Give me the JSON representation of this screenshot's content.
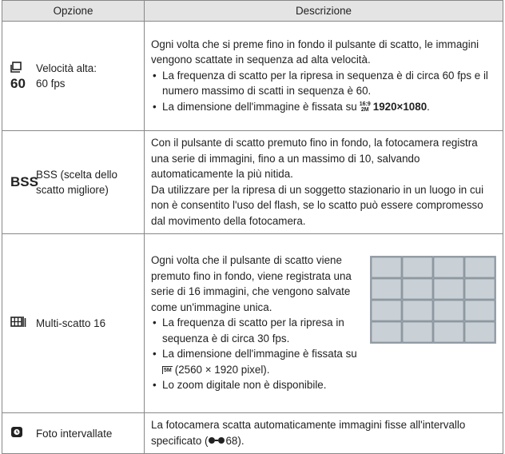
{
  "table": {
    "header": [
      "Opzione",
      "Descrizione"
    ],
    "rows": [
      {
        "icon": "60",
        "option": [
          "Velocità alta:",
          "60 fps"
        ],
        "paragraphs": [
          "Ogni volta che si preme fino in fondo il pulsante di scatto, le immagini vengono scattate in sequenza ad alta velocità."
        ],
        "bullets": [
          {
            "text": "La frequenza di scatto per la ripresa in sequenza è di circa 60 fps e il numero massimo di scatti in sequenza è 60."
          },
          {
            "text": "La dimensione dell'immagine è fissata su",
            "icon_top": "16:9",
            "icon_bottom": "2M",
            "bold": "1920×1080",
            "after": "."
          }
        ]
      },
      {
        "icon": "BSS",
        "option": [
          "BSS (scelta dello",
          "scatto migliore)"
        ],
        "paragraphs": [
          "Con il pulsante di scatto premuto fino in fondo, la fotocamera registra una serie di immagini, fino a un massimo di 10, salvando automaticamente la più nitida.",
          "Da utilizzare per la ripresa di un soggetto stazionario in un luogo in cui non è consentito l'uso del flash, se lo scatto può essere compromesso dal movimento della fotocamera."
        ]
      },
      {
        "option": [
          "Multi-scatto 16"
        ],
        "paragraphs": [
          "Ogni volta che il pulsante di scatto viene premuto fino in fondo, viene registrata una serie di 16 immagini, che vengono salvate come un'immagine unica."
        ],
        "bullets": [
          {
            "text": "La frequenza di scatto per la ripresa in sequenza è di circa 30 fps."
          },
          {
            "text": "La dimensione dell'immagine è fissata su",
            "icon": "5M",
            "after": "(2560 × 1920 pixel)."
          },
          {
            "text": "Lo zoom digitale non è disponibile."
          }
        ]
      },
      {
        "option": [
          "Foto intervallate"
        ],
        "paragraphs": [
          {
            "text": "La fotocamera scatta automaticamente immagini fisse all'intervallo specificato (",
            "ref": "68",
            "after": ")."
          }
        ]
      }
    ]
  }
}
